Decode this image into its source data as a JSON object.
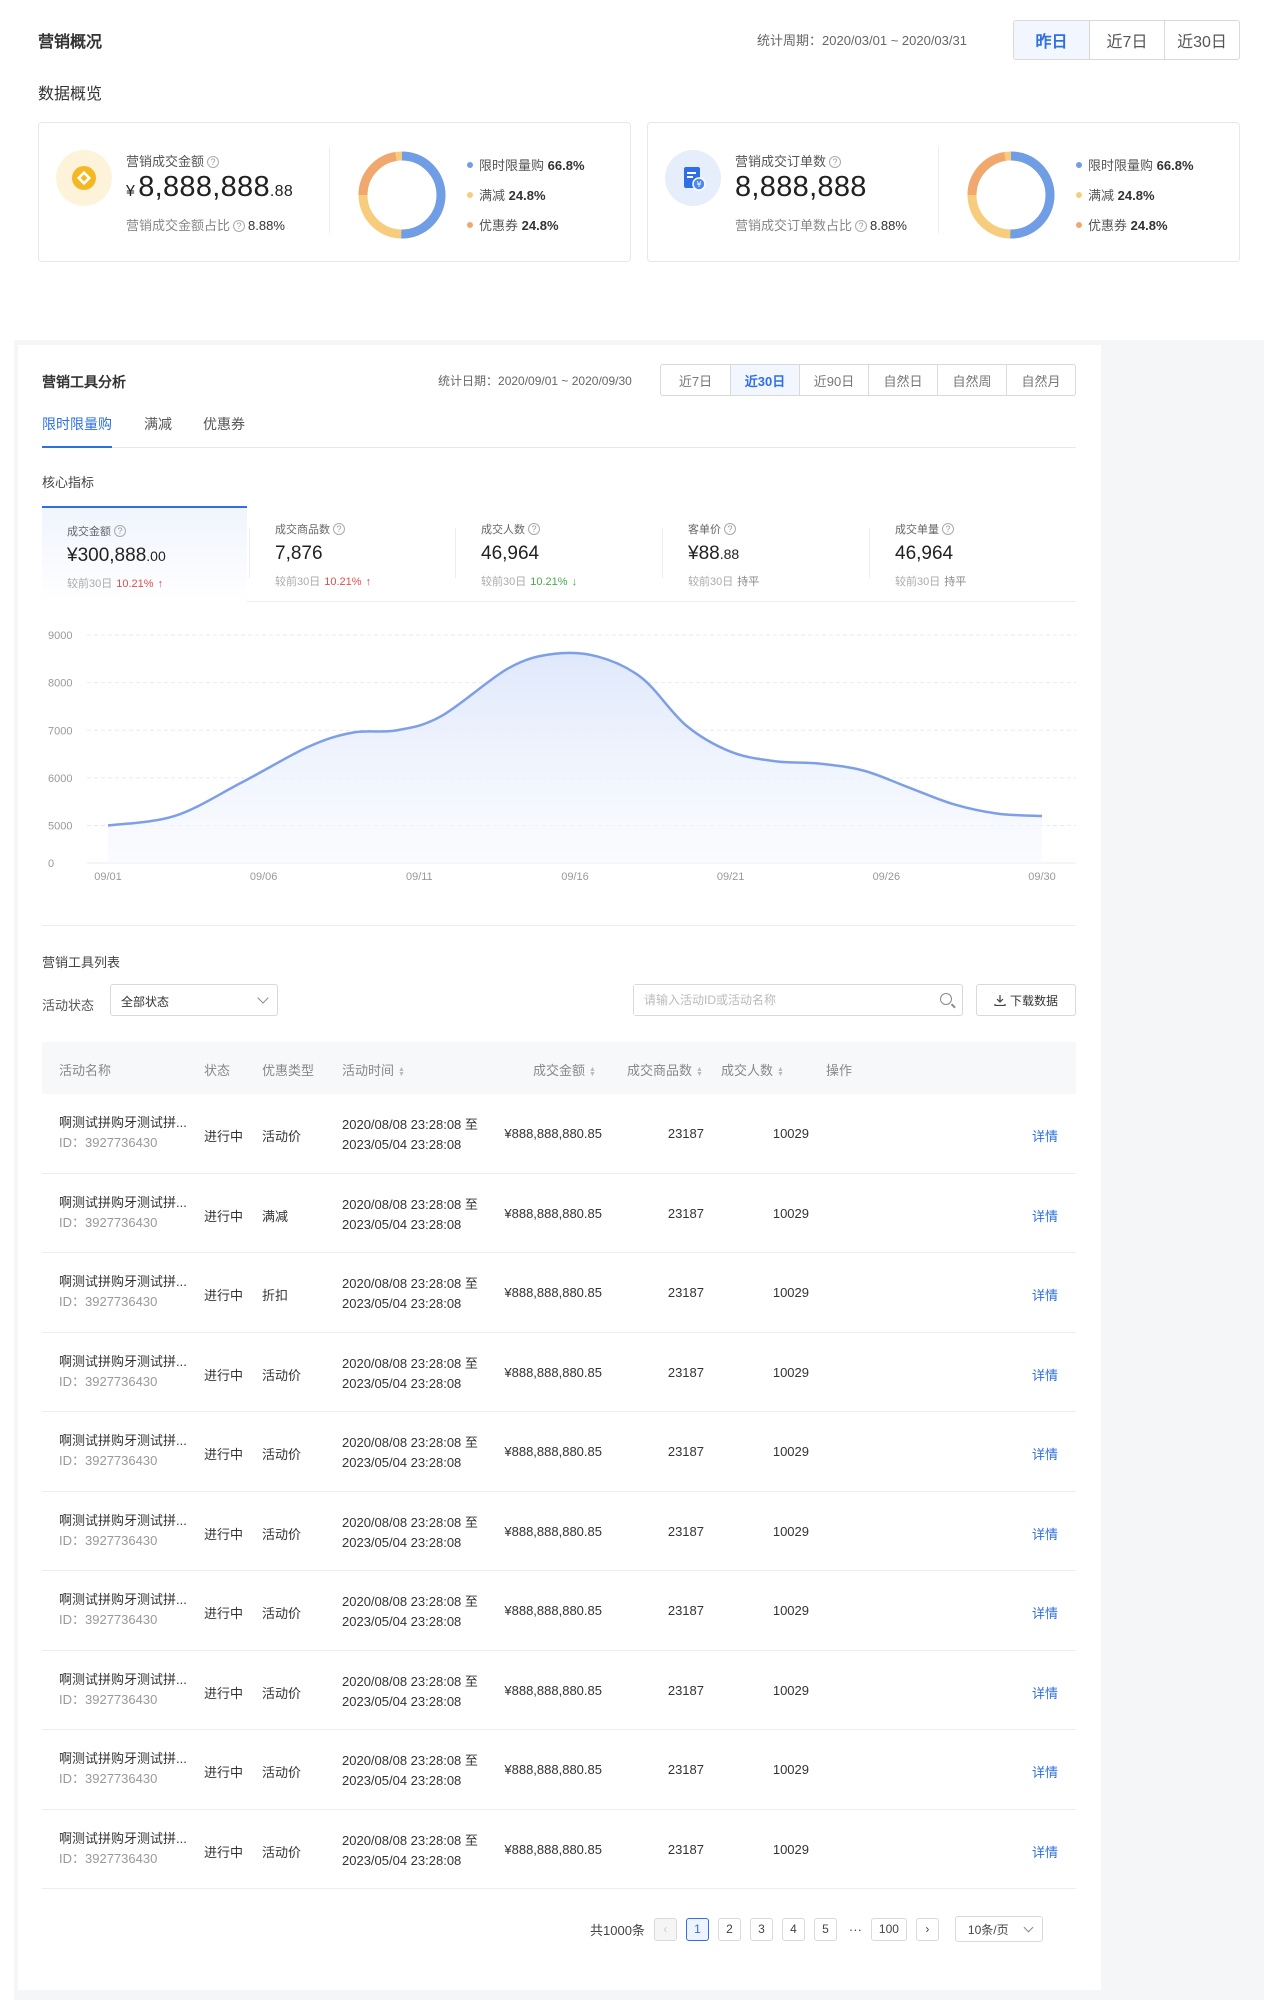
{
  "header": {
    "title": "营销概况",
    "period_label": "统计周期：",
    "period_value": "2020/03/01 ~ 2020/03/31",
    "ranges": [
      "昨日",
      "近7日",
      "近30日"
    ],
    "active_range": "昨日"
  },
  "overview_title": "数据概览",
  "cards": [
    {
      "label": "营销成交金额",
      "currency": "¥",
      "value_main": "8,888,888",
      "value_decimal": ".88",
      "foot_label": "营销成交金额占比",
      "foot_value": "8.88%",
      "icon": "coin-icon",
      "icon_color": "#f5b825",
      "legend": [
        {
          "name": "限时限量购",
          "value": "66.8%",
          "color": "#6f9de6"
        },
        {
          "name": "满减",
          "value": "24.8%",
          "color": "#f7cd7d"
        },
        {
          "name": "优惠券",
          "value": "24.8%",
          "color": "#f0a86e"
        }
      ]
    },
    {
      "label": "营销成交订单数",
      "currency": "",
      "value_main": "8,888,888",
      "value_decimal": "",
      "foot_label": "营销成交订单数占比",
      "foot_value": "8.88%",
      "icon": "order-doc-icon",
      "icon_color": "#2e6fe6",
      "legend": [
        {
          "name": "限时限量购",
          "value": "66.8%",
          "color": "#6f9de6"
        },
        {
          "name": "满减",
          "value": "24.8%",
          "color": "#f7cd7d"
        },
        {
          "name": "优惠券",
          "value": "24.8%",
          "color": "#f0a86e"
        }
      ]
    }
  ],
  "panel": {
    "title": "营销工具分析",
    "date_label": "统计日期：",
    "date_value": "2020/09/01 ~ 2020/09/30",
    "ranges": [
      "近7日",
      "近30日",
      "近90日",
      "自然日",
      "自然周",
      "自然月"
    ],
    "active_range": "近30日",
    "tabs": [
      "限时限量购",
      "满减",
      "优惠券"
    ],
    "active_tab": "限时限量购",
    "core_title": "核心指标"
  },
  "kpis": [
    {
      "label": "成交金额",
      "prefix": "¥",
      "value": "300,888",
      "decimal": ".00",
      "compare": "较前30日",
      "delta": "10.21%",
      "trend": "up"
    },
    {
      "label": "成交商品数",
      "prefix": "",
      "value": "7,876",
      "decimal": "",
      "compare": "较前30日",
      "delta": "10.21%",
      "trend": "up"
    },
    {
      "label": "成交人数",
      "prefix": "",
      "value": "46,964",
      "decimal": "",
      "compare": "较前30日",
      "delta": "10.21%",
      "trend": "down"
    },
    {
      "label": "客单价",
      "prefix": "¥",
      "value": "88",
      "decimal": ".88",
      "compare": "较前30日",
      "delta": "持平",
      "trend": "flat"
    },
    {
      "label": "成交单量",
      "prefix": "",
      "value": "46,964",
      "decimal": "",
      "compare": "较前30日",
      "delta": "持平",
      "trend": "flat"
    }
  ],
  "chart_data": {
    "type": "area",
    "x": [
      "09/01",
      "09/06",
      "09/11",
      "09/16",
      "09/21",
      "09/26",
      "09/30"
    ],
    "y_ticks": [
      0,
      5000,
      6000,
      7000,
      8000,
      9000
    ],
    "series": [
      {
        "points": [
          [
            0,
            5000
          ],
          [
            3,
            5200
          ],
          [
            6,
            5900
          ],
          [
            9,
            6650
          ],
          [
            11,
            6950
          ],
          [
            13,
            7000
          ],
          [
            15,
            7300
          ],
          [
            18,
            8300
          ],
          [
            20,
            8600
          ],
          [
            22,
            8550
          ],
          [
            24,
            8100
          ],
          [
            26,
            7100
          ],
          [
            28,
            6550
          ],
          [
            30,
            6350
          ],
          [
            32,
            6300
          ],
          [
            34,
            6150
          ],
          [
            36,
            5800
          ],
          [
            38,
            5450
          ],
          [
            40,
            5250
          ],
          [
            42,
            5200
          ]
        ],
        "color": "#7d9fe8"
      }
    ]
  },
  "list": {
    "title": "营销工具列表",
    "filter_label": "活动状态",
    "filter_value": "全部状态",
    "search_placeholder": "请输入活动ID或活动名称",
    "download_label": "下载数据",
    "columns": [
      "活动名称",
      "状态",
      "优惠类型",
      "活动时间",
      "成交金额",
      "成交商品数",
      "成交人数",
      "操作"
    ],
    "rows": [
      {
        "name": "啊测试拼购牙测试拼...",
        "id": "ID：3927736430",
        "status": "进行中",
        "type": "活动价",
        "start": "2020/08/08  23:28:08 至",
        "end": "2023/05/04  23:28:08",
        "amount": "¥888,888,880.85",
        "goods": "23187",
        "people": "10029",
        "action": "详情"
      },
      {
        "name": "啊测试拼购牙测试拼...",
        "id": "ID：3927736430",
        "status": "进行中",
        "type": "满减",
        "start": "2020/08/08  23:28:08 至",
        "end": "2023/05/04  23:28:08",
        "amount": "¥888,888,880.85",
        "goods": "23187",
        "people": "10029",
        "action": "详情"
      },
      {
        "name": "啊测试拼购牙测试拼...",
        "id": "ID：3927736430",
        "status": "进行中",
        "type": "折扣",
        "start": "2020/08/08  23:28:08 至",
        "end": "2023/05/04  23:28:08",
        "amount": "¥888,888,880.85",
        "goods": "23187",
        "people": "10029",
        "action": "详情"
      },
      {
        "name": "啊测试拼购牙测试拼...",
        "id": "ID：3927736430",
        "status": "进行中",
        "type": "活动价",
        "start": "2020/08/08  23:28:08 至",
        "end": "2023/05/04  23:28:08",
        "amount": "¥888,888,880.85",
        "goods": "23187",
        "people": "10029",
        "action": "详情"
      },
      {
        "name": "啊测试拼购牙测试拼...",
        "id": "ID：3927736430",
        "status": "进行中",
        "type": "活动价",
        "start": "2020/08/08  23:28:08 至",
        "end": "2023/05/04  23:28:08",
        "amount": "¥888,888,880.85",
        "goods": "23187",
        "people": "10029",
        "action": "详情"
      },
      {
        "name": "啊测试拼购牙测试拼...",
        "id": "ID：3927736430",
        "status": "进行中",
        "type": "活动价",
        "start": "2020/08/08  23:28:08 至",
        "end": "2023/05/04  23:28:08",
        "amount": "¥888,888,880.85",
        "goods": "23187",
        "people": "10029",
        "action": "详情"
      },
      {
        "name": "啊测试拼购牙测试拼...",
        "id": "ID：3927736430",
        "status": "进行中",
        "type": "活动价",
        "start": "2020/08/08  23:28:08 至",
        "end": "2023/05/04  23:28:08",
        "amount": "¥888,888,880.85",
        "goods": "23187",
        "people": "10029",
        "action": "详情"
      },
      {
        "name": "啊测试拼购牙测试拼...",
        "id": "ID：3927736430",
        "status": "进行中",
        "type": "活动价",
        "start": "2020/08/08  23:28:08 至",
        "end": "2023/05/04  23:28:08",
        "amount": "¥888,888,880.85",
        "goods": "23187",
        "people": "10029",
        "action": "详情"
      },
      {
        "name": "啊测试拼购牙测试拼...",
        "id": "ID：3927736430",
        "status": "进行中",
        "type": "活动价",
        "start": "2020/08/08  23:28:08 至",
        "end": "2023/05/04  23:28:08",
        "amount": "¥888,888,880.85",
        "goods": "23187",
        "people": "10029",
        "action": "详情"
      },
      {
        "name": "啊测试拼购牙测试拼...",
        "id": "ID：3927736430",
        "status": "进行中",
        "type": "活动价",
        "start": "2020/08/08  23:28:08 至",
        "end": "2023/05/04  23:28:08",
        "amount": "¥888,888,880.85",
        "goods": "23187",
        "people": "10029",
        "action": "详情"
      }
    ]
  },
  "pagination": {
    "total": "共1000条",
    "pages": [
      "1",
      "2",
      "3",
      "4",
      "5"
    ],
    "ellipsis": "···",
    "last": "100",
    "current": "1",
    "page_size": "10条/页"
  }
}
